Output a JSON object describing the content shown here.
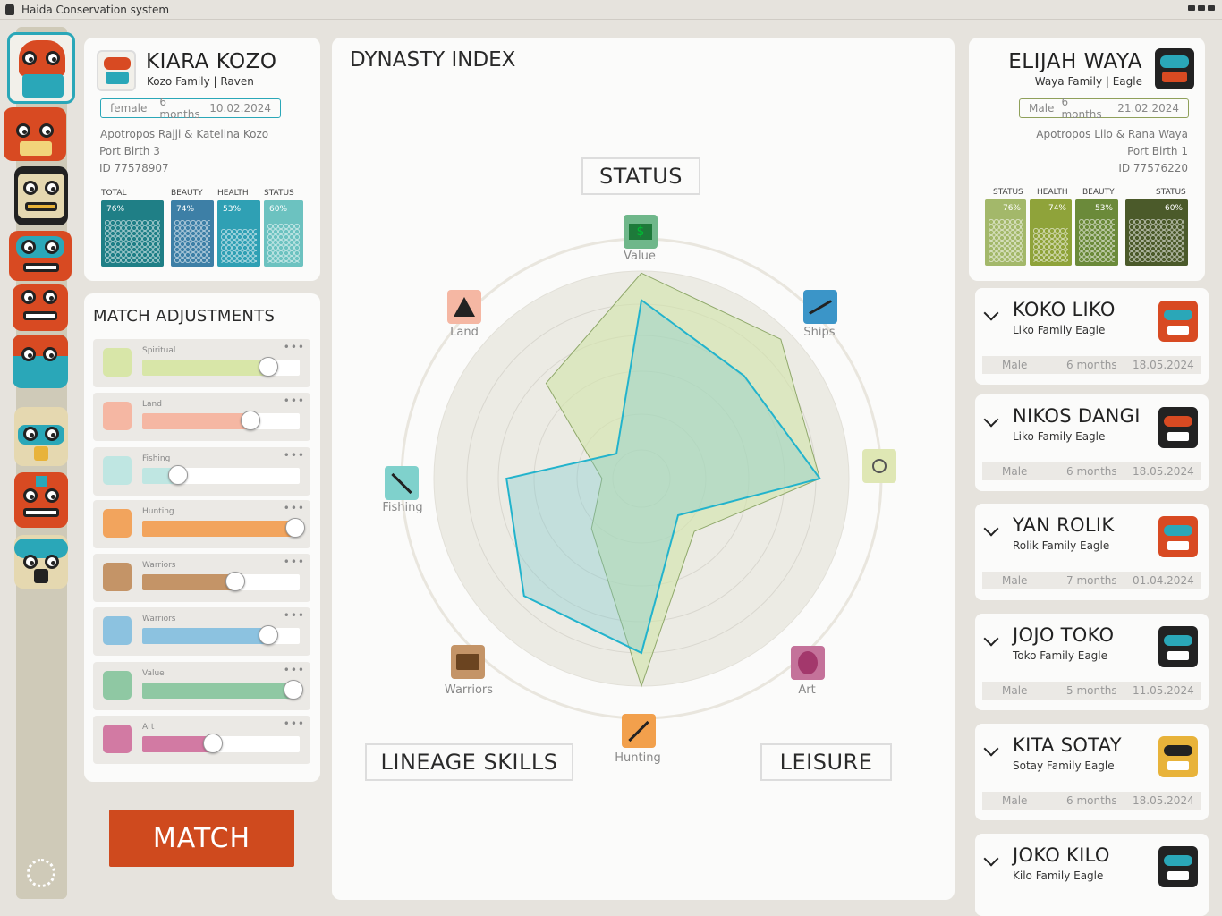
{
  "app": {
    "title": "Haida Conservation system"
  },
  "profile_left": {
    "name": "KIARA KOZO",
    "family_line": "Kozo Family | Raven",
    "gender": "female",
    "age": "6 months",
    "date": "10.02.2024",
    "parents": "Apotropos Rajji & Katelina Kozo",
    "port": "Port Birth 3",
    "id": "ID 77578907",
    "stats": [
      {
        "label": "TOTAL",
        "pct": "76%",
        "value": 76
      },
      {
        "label": "BEAUTY",
        "pct": "74%",
        "value": 74
      },
      {
        "label": "HEALTH",
        "pct": "53%",
        "value": 53
      },
      {
        "label": "STATUS",
        "pct": "60%",
        "value": 60
      }
    ]
  },
  "adjustments": {
    "title": "MATCH ADJUSTMENTS",
    "rows": [
      {
        "label": "Spiritual",
        "value": 0.8,
        "color": "#d8e6a8",
        "icon": "spiral-icon"
      },
      {
        "label": "Land",
        "value": 0.69,
        "color": "#f5b7a3",
        "icon": "tent-icon"
      },
      {
        "label": "Fishing",
        "value": 0.23,
        "color": "#bfe6e2",
        "icon": "fishing-icon"
      },
      {
        "label": "Hunting",
        "value": 0.97,
        "color": "#f2a45d",
        "icon": "arrow-icon"
      },
      {
        "label": "Warriors",
        "value": 0.59,
        "color": "#c49467",
        "icon": "warrior-icon"
      },
      {
        "label": "Warriors",
        "value": 0.8,
        "color": "#8cc2e0",
        "icon": "ship-icon"
      },
      {
        "label": "Value",
        "value": 0.96,
        "color": "#8fc8a3",
        "icon": "dollar-icon"
      },
      {
        "label": "Art",
        "value": 0.45,
        "color": "#d27aa3",
        "icon": "art-mask-icon"
      }
    ]
  },
  "match_button": "MATCH",
  "radar": {
    "title": "DYNASTY INDEX",
    "group_labels": {
      "status": "STATUS",
      "lineage": "LINEAGE SKILLS",
      "leisure": "LEISURE"
    },
    "axes": [
      "Value",
      "Ships",
      "Spiritual",
      "Art",
      "Hunting",
      "Warriors",
      "Fishing",
      "Land"
    ],
    "axis_labels_shown": {
      "Value": "Value",
      "Ships": "Ships",
      "Art": "Art",
      "Hunting": "Hunting",
      "Warriors": "Warriors",
      "Fishing": "Fishing",
      "Land": "Land"
    },
    "series_green": [
      0.99,
      0.95,
      0.86,
      0.36,
      1.0,
      0.34,
      0.19,
      0.65
    ],
    "series_blue": [
      0.86,
      0.7,
      0.86,
      0.25,
      0.84,
      0.8,
      0.65,
      0.17
    ]
  },
  "profile_right": {
    "name": "ELIJAH WAYA",
    "family_line": "Waya Family | Eagle",
    "gender": "Male",
    "age": "6 months",
    "date": "21.02.2024",
    "parents": "Apotropos Lilo & Rana Waya",
    "port": "Port Birth 1",
    "id": "ID 77576220",
    "stats": [
      {
        "label": "STATUS",
        "pct": "76%",
        "value": 76
      },
      {
        "label": "HEALTH",
        "pct": "74%",
        "value": 74
      },
      {
        "label": "BEAUTY",
        "pct": "53%",
        "value": 53
      },
      {
        "label": "STATUS",
        "pct": "60%",
        "value": 60
      }
    ]
  },
  "matches": [
    {
      "name": "KOKO LIKO",
      "family": "Liko Family Eagle",
      "gender": "Male",
      "age": "6 months",
      "date": "18.05.2024"
    },
    {
      "name": "NIKOS DANGI",
      "family": "Liko Family Eagle",
      "gender": "Male",
      "age": "6 months",
      "date": "18.05.2024"
    },
    {
      "name": "YAN ROLIK",
      "family": "Rolik Family Eagle",
      "gender": "Male",
      "age": "7 months",
      "date": "01.04.2024"
    },
    {
      "name": "JOJO TOKO",
      "family": "Toko Family Eagle",
      "gender": "Male",
      "age": "5 months",
      "date": "11.05.2024"
    },
    {
      "name": "KITA SOTAY",
      "family": "Sotay Family Eagle",
      "gender": "Male",
      "age": "6 months",
      "date": "18.05.2024"
    },
    {
      "name": "JOKO KILO",
      "family": "Kilo Family Eagle",
      "gender": "",
      "age": "",
      "date": ""
    }
  ]
}
